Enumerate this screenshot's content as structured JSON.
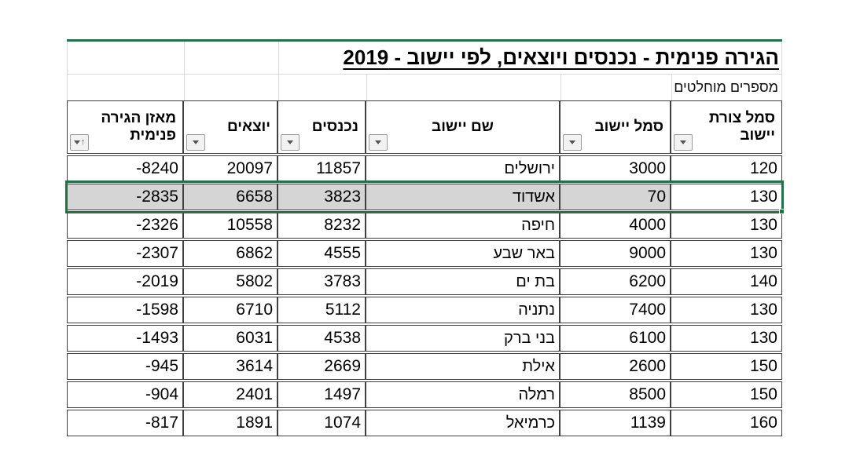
{
  "title": "הגירה פנימית - נכנסים ויוצאים, לפי יישוב - 2019",
  "subtitle": "מספרים מוחלטים",
  "colors": {
    "accent_green": "#217346",
    "selection_fill": "#d5d5d5",
    "grid_light": "#d9d9d9",
    "border_dark": "#404040"
  },
  "icons": {
    "filter_dropdown": "dropdown-arrow-icon",
    "sort_ascending": "↑"
  },
  "table": {
    "columns": [
      {
        "id": "shape_code",
        "label_lines": [
          "סמל צורת",
          "יישוב"
        ],
        "align": "right",
        "filter": true,
        "sorted": ""
      },
      {
        "id": "code",
        "label_lines": [
          "סמל יישוב"
        ],
        "align": "right",
        "filter": true,
        "sorted": ""
      },
      {
        "id": "name",
        "label_lines": [
          "שם יישוב"
        ],
        "align": "center",
        "filter": true,
        "sorted": ""
      },
      {
        "id": "incoming",
        "label_lines": [
          "נכנסים"
        ],
        "align": "right",
        "filter": true,
        "sorted": ""
      },
      {
        "id": "outgoing",
        "label_lines": [
          "יוצאים"
        ],
        "align": "right",
        "filter": true,
        "sorted": ""
      },
      {
        "id": "balance",
        "label_lines": [
          "מאזן הגירה",
          "פנימית"
        ],
        "align": "right",
        "filter": true,
        "sorted": "asc"
      }
    ],
    "rows": [
      {
        "shape_code": "120",
        "code": "3000",
        "name": "ירושלים",
        "incoming": "11857",
        "outgoing": "20097",
        "balance": "-8240",
        "selected": false
      },
      {
        "shape_code": "130",
        "code": "70",
        "name": "אשדוד",
        "incoming": "3823",
        "outgoing": "6658",
        "balance": "-2835",
        "selected": true
      },
      {
        "shape_code": "130",
        "code": "4000",
        "name": "חיפה",
        "incoming": "8232",
        "outgoing": "10558",
        "balance": "-2326",
        "selected": false
      },
      {
        "shape_code": "130",
        "code": "9000",
        "name": "באר שבע",
        "incoming": "4555",
        "outgoing": "6862",
        "balance": "-2307",
        "selected": false
      },
      {
        "shape_code": "140",
        "code": "6200",
        "name": "בת ים",
        "incoming": "3783",
        "outgoing": "5802",
        "balance": "-2019",
        "selected": false
      },
      {
        "shape_code": "130",
        "code": "7400",
        "name": "נתניה",
        "incoming": "5112",
        "outgoing": "6710",
        "balance": "-1598",
        "selected": false
      },
      {
        "shape_code": "130",
        "code": "6100",
        "name": "בני ברק",
        "incoming": "4538",
        "outgoing": "6031",
        "balance": "-1493",
        "selected": false
      },
      {
        "shape_code": "150",
        "code": "2600",
        "name": "אילת",
        "incoming": "2669",
        "outgoing": "3614",
        "balance": "-945",
        "selected": false
      },
      {
        "shape_code": "150",
        "code": "8500",
        "name": "רמלה",
        "incoming": "1497",
        "outgoing": "2401",
        "balance": "-904",
        "selected": false
      },
      {
        "shape_code": "160",
        "code": "1139",
        "name": "כרמיאל",
        "incoming": "1074",
        "outgoing": "1891",
        "balance": "-817",
        "selected": false
      }
    ]
  }
}
